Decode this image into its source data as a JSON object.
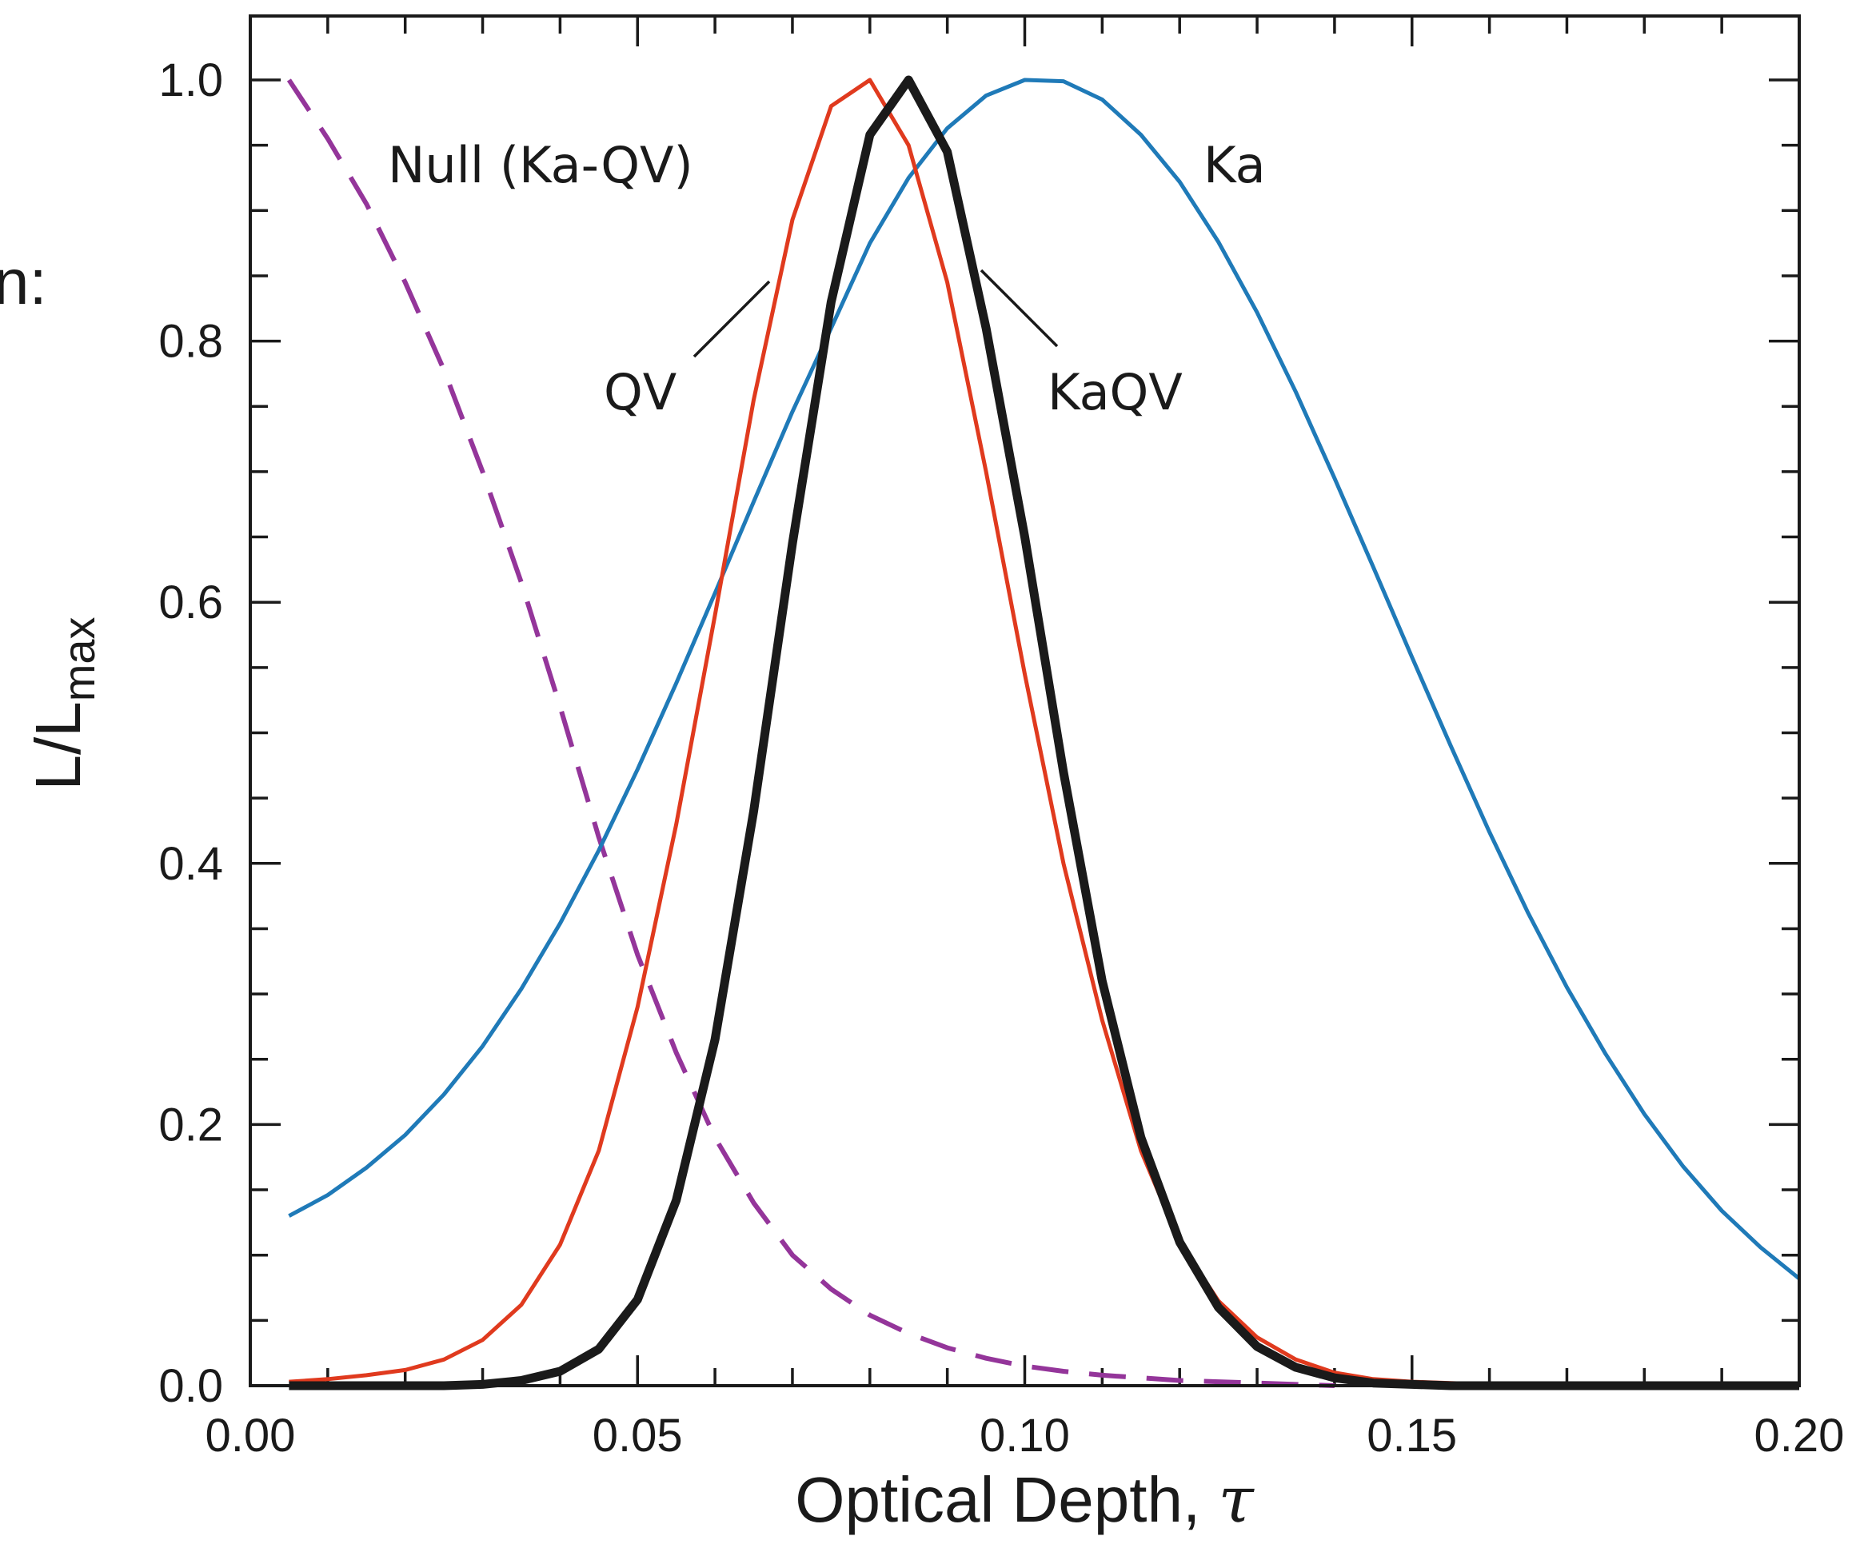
{
  "chart_data": {
    "type": "line",
    "xlabel": "Optical Depth, ",
    "xlabel_symbol": "τ",
    "ylabel_main": "L/L",
    "ylabel_sub": "max",
    "xlim": [
      0.0,
      0.2
    ],
    "ylim": [
      0.0,
      1.0
    ],
    "x_ticks": [
      0.0,
      0.05,
      0.1,
      0.15,
      0.2
    ],
    "x_tick_labels": [
      "0.00",
      "0.05",
      "0.10",
      "0.15",
      "0.20"
    ],
    "y_ticks": [
      0.0,
      0.2,
      0.4,
      0.6,
      0.8,
      1.0
    ],
    "y_tick_labels": [
      "0.0",
      "0.2",
      "0.4",
      "0.6",
      "0.8",
      "1.0"
    ],
    "grid": false,
    "fragment_text": "n:",
    "series": [
      {
        "name": "Ka",
        "color": "#1f7ab8",
        "style": "solid",
        "x": [
          0.005,
          0.01,
          0.015,
          0.02,
          0.025,
          0.03,
          0.035,
          0.04,
          0.045,
          0.05,
          0.055,
          0.06,
          0.065,
          0.07,
          0.075,
          0.08,
          0.085,
          0.09,
          0.095,
          0.1,
          0.105,
          0.11,
          0.115,
          0.12,
          0.125,
          0.13,
          0.135,
          0.14,
          0.145,
          0.15,
          0.155,
          0.16,
          0.165,
          0.17,
          0.175,
          0.18,
          0.185,
          0.19,
          0.195,
          0.2
        ],
        "y": [
          0.13,
          0.146,
          0.167,
          0.192,
          0.223,
          0.26,
          0.304,
          0.354,
          0.41,
          0.472,
          0.538,
          0.607,
          0.677,
          0.746,
          0.81,
          0.875,
          0.925,
          0.963,
          0.988,
          1.0,
          0.999,
          0.985,
          0.958,
          0.922,
          0.876,
          0.822,
          0.761,
          0.695,
          0.627,
          0.558,
          0.49,
          0.424,
          0.362,
          0.305,
          0.254,
          0.208,
          0.168,
          0.134,
          0.106,
          0.082
        ]
      },
      {
        "name": "QV",
        "color": "#e03a1e",
        "style": "solid",
        "x": [
          0.005,
          0.01,
          0.015,
          0.02,
          0.025,
          0.03,
          0.035,
          0.04,
          0.045,
          0.05,
          0.055,
          0.06,
          0.065,
          0.07,
          0.075,
          0.08,
          0.085,
          0.09,
          0.095,
          0.1,
          0.105,
          0.11,
          0.115,
          0.12,
          0.125,
          0.13,
          0.135,
          0.14,
          0.145,
          0.15,
          0.155,
          0.16,
          0.165,
          0.17,
          0.175,
          0.18,
          0.185,
          0.19,
          0.195,
          0.2
        ],
        "y": [
          0.003,
          0.005,
          0.008,
          0.012,
          0.02,
          0.035,
          0.062,
          0.108,
          0.18,
          0.29,
          0.43,
          0.59,
          0.755,
          0.893,
          0.98,
          1.0,
          0.95,
          0.845,
          0.7,
          0.545,
          0.4,
          0.28,
          0.18,
          0.11,
          0.065,
          0.037,
          0.02,
          0.01,
          0.005,
          0.003,
          0.002,
          0.001,
          0.001,
          0.0,
          0.0,
          0.0,
          0.0,
          0.0,
          0.0,
          0.0
        ]
      },
      {
        "name": "KaQV",
        "color": "#1a1a1a",
        "style": "solid-bold",
        "x": [
          0.005,
          0.01,
          0.015,
          0.02,
          0.025,
          0.03,
          0.035,
          0.04,
          0.045,
          0.05,
          0.055,
          0.06,
          0.065,
          0.07,
          0.075,
          0.08,
          0.085,
          0.09,
          0.095,
          0.1,
          0.105,
          0.11,
          0.115,
          0.12,
          0.125,
          0.13,
          0.135,
          0.14,
          0.145,
          0.15,
          0.155,
          0.16,
          0.165,
          0.17,
          0.175,
          0.18,
          0.185,
          0.19,
          0.195,
          0.2
        ],
        "y": [
          0.0,
          0.0,
          0.0,
          0.0,
          0.0,
          0.001,
          0.004,
          0.011,
          0.028,
          0.066,
          0.142,
          0.265,
          0.44,
          0.645,
          0.83,
          0.958,
          1.0,
          0.945,
          0.81,
          0.65,
          0.47,
          0.31,
          0.19,
          0.11,
          0.06,
          0.03,
          0.014,
          0.006,
          0.002,
          0.001,
          0.0,
          0.0,
          0.0,
          0.0,
          0.0,
          0.0,
          0.0,
          0.0,
          0.0,
          0.0
        ]
      },
      {
        "name": "Null (Ka-QV)",
        "color": "#94359a",
        "style": "dashed",
        "x": [
          0.005,
          0.01,
          0.015,
          0.02,
          0.025,
          0.03,
          0.035,
          0.04,
          0.045,
          0.05,
          0.055,
          0.06,
          0.065,
          0.07,
          0.075,
          0.08,
          0.085,
          0.09,
          0.095,
          0.1,
          0.105,
          0.11,
          0.115,
          0.12,
          0.125,
          0.13,
          0.135,
          0.14
        ],
        "y": [
          1.0,
          0.955,
          0.905,
          0.845,
          0.778,
          0.7,
          0.615,
          0.52,
          0.42,
          0.33,
          0.255,
          0.19,
          0.14,
          0.1,
          0.074,
          0.054,
          0.04,
          0.029,
          0.021,
          0.015,
          0.011,
          0.008,
          0.006,
          0.004,
          0.003,
          0.002,
          0.001,
          0.0
        ]
      }
    ],
    "annotations": [
      {
        "text": "Null (Ka-QV)",
        "series": "Null (Ka-QV)"
      },
      {
        "text": "Ka",
        "series": "Ka"
      },
      {
        "text": "QV",
        "series": "QV"
      },
      {
        "text": "KaQV",
        "series": "KaQV"
      }
    ]
  }
}
